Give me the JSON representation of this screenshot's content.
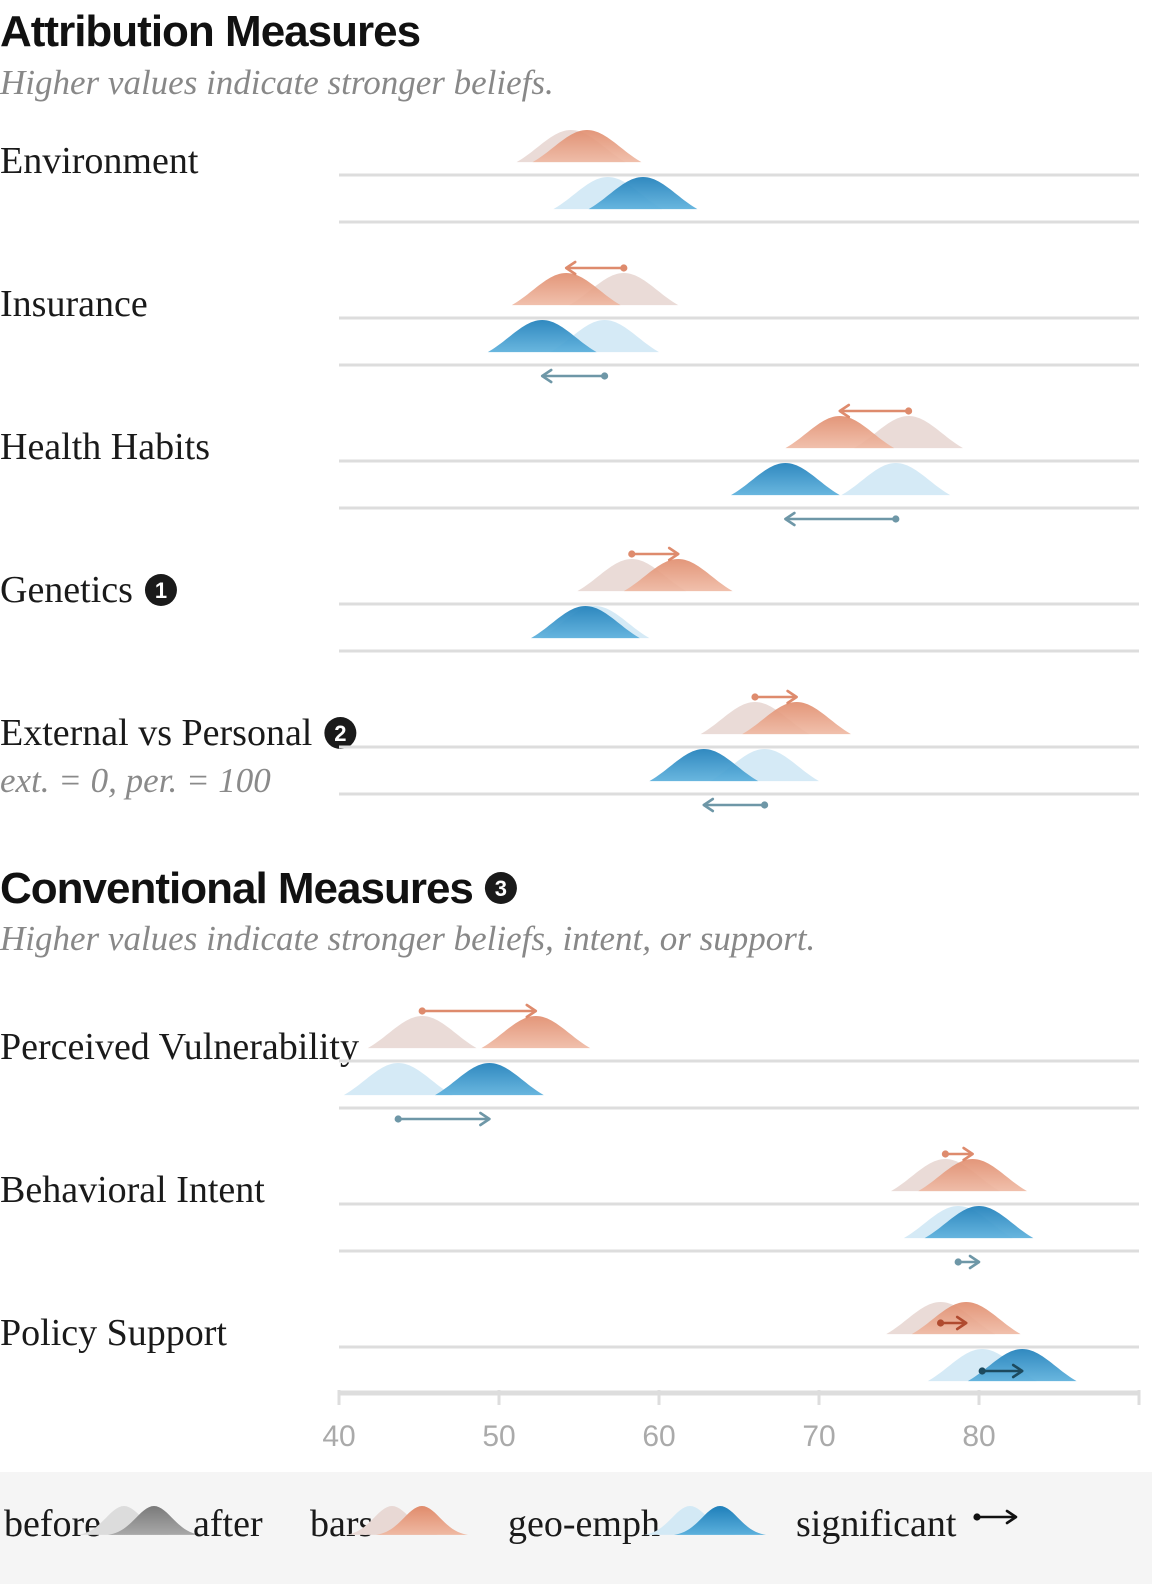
{
  "chart_data": {
    "type": "area",
    "sections": [
      {
        "title": "Attribution Measures",
        "subtitle": "Higher values indicate stronger beliefs.",
        "badge": "",
        "rows": [
          {
            "label": "Environment",
            "note": "",
            "badge": "",
            "bars": {
              "before": 54.5,
              "after": 55.5,
              "significant": false
            },
            "geo": {
              "before": 56.8,
              "after": 59.0,
              "significant": false
            }
          },
          {
            "label": "Insurance",
            "note": "",
            "badge": "",
            "bars": {
              "before": 57.8,
              "after": 54.2,
              "significant": true
            },
            "geo": {
              "before": 56.6,
              "after": 52.7,
              "significant": true
            }
          },
          {
            "label": "Health Habits",
            "note": "",
            "badge": "",
            "bars": {
              "before": 75.6,
              "after": 71.3,
              "significant": true
            },
            "geo": {
              "before": 74.8,
              "after": 67.9,
              "significant": true
            }
          },
          {
            "label": "Genetics",
            "note": "",
            "badge": "1",
            "bars": {
              "before": 58.3,
              "after": 61.2,
              "significant": true
            },
            "geo": {
              "before": 56.0,
              "after": 55.4,
              "significant": false
            }
          },
          {
            "label": "External vs Personal",
            "note": "ext. = 0, per. = 100",
            "badge": "2",
            "bars": {
              "before": 66.0,
              "after": 68.6,
              "significant": true
            },
            "geo": {
              "before": 66.6,
              "after": 62.8,
              "significant": true
            }
          }
        ]
      },
      {
        "title": "Conventional Measures",
        "subtitle": "Higher values indicate stronger beliefs, intent, or support.",
        "badge": "3",
        "rows": [
          {
            "label": "Perceived Vulnerability",
            "note": "",
            "badge": "",
            "bars": {
              "before": 45.2,
              "after": 52.3,
              "significant": true
            },
            "geo": {
              "before": 43.7,
              "after": 49.4,
              "significant": true
            }
          },
          {
            "label": "Behavioral Intent",
            "note": "",
            "badge": "",
            "bars": {
              "before": 77.9,
              "after": 79.6,
              "significant": true
            },
            "geo": {
              "before": 78.7,
              "after": 80.0,
              "significant": true
            }
          },
          {
            "label": "Policy Support",
            "note": "",
            "badge": "",
            "bars": {
              "before": 77.6,
              "after": 79.2,
              "significant": true
            },
            "geo": {
              "before": 80.2,
              "after": 82.7,
              "significant": true
            }
          }
        ]
      }
    ],
    "x_axis": {
      "min": 40,
      "max": 90,
      "ticks": [
        40,
        50,
        60,
        70,
        80
      ]
    },
    "legend": {
      "items": [
        {
          "label_before": "before",
          "label_after": "after",
          "kind": "generic"
        },
        {
          "label": "bars",
          "kind": "bars"
        },
        {
          "label": "geo-emph",
          "kind": "geo"
        },
        {
          "label": "significant",
          "kind": "significant"
        }
      ]
    },
    "colors": {
      "bars_before": "#e8d8d4",
      "bars_after": "#e3967a",
      "geo_before": "#d3e9f5",
      "geo_after": "#2a8bc4",
      "bars_arrow": "#de8b6d",
      "geo_arrow": "#6e97a7",
      "dark_bars_arrow": "#b04a2f",
      "dark_geo_arrow": "#1d4a5e",
      "baseline": "#dddddd",
      "legend_bg": "#f5f5f5"
    }
  }
}
